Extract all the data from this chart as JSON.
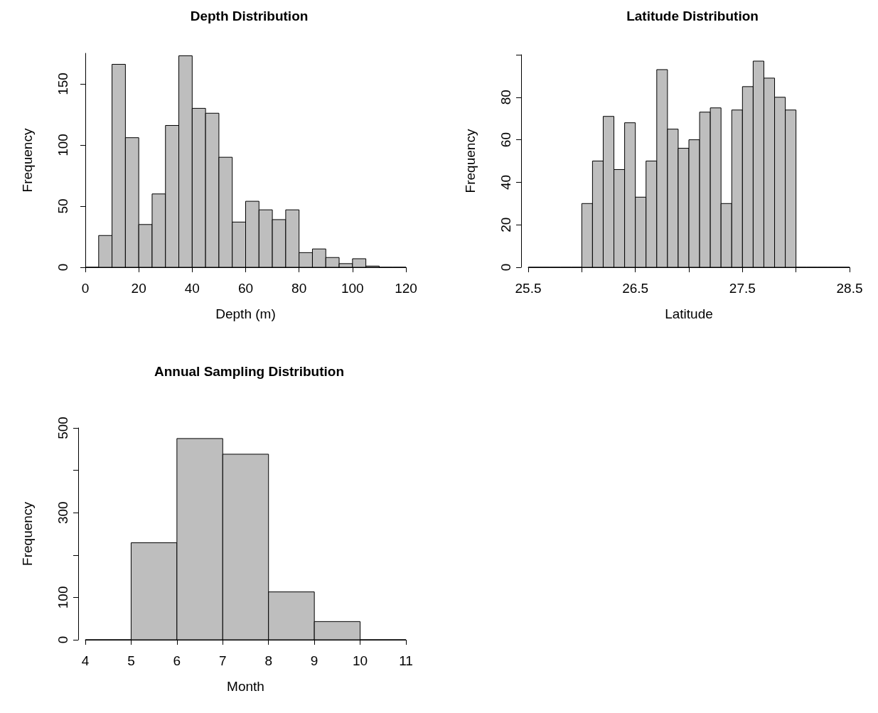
{
  "chart_data": [
    {
      "type": "histogram",
      "title": "Depth Distribution",
      "xlabel": "Depth (m)",
      "ylabel": "Frequency",
      "color": "#bebebe",
      "bins": [
        0,
        5,
        10,
        15,
        20,
        25,
        30,
        35,
        40,
        45,
        50,
        55,
        60,
        65,
        70,
        75,
        80,
        85,
        90,
        95,
        100,
        105,
        110,
        115,
        120
      ],
      "values": [
        0,
        26,
        166,
        106,
        35,
        60,
        116,
        173,
        130,
        126,
        90,
        37,
        54,
        47,
        39,
        47,
        12,
        15,
        8,
        3,
        7,
        1,
        0,
        0
      ],
      "xlim": [
        0,
        120
      ],
      "xticks": [
        0,
        20,
        40,
        60,
        80,
        100,
        120
      ],
      "ylim": [
        0,
        175
      ],
      "yticks": [
        0,
        50,
        100,
        150
      ]
    },
    {
      "type": "histogram",
      "title": "Latitude Distribution",
      "xlabel": "Latitude",
      "ylabel": "Frequency",
      "color": "#bebebe",
      "bins": [
        25.5,
        25.6,
        25.7,
        25.8,
        25.9,
        26.0,
        26.1,
        26.2,
        26.3,
        26.4,
        26.5,
        26.6,
        26.7,
        26.8,
        26.9,
        27.0,
        27.1,
        27.2,
        27.3,
        27.4,
        27.5,
        27.6,
        27.7,
        27.8,
        27.9,
        28.0,
        28.1,
        28.2,
        28.3,
        28.4,
        28.5
      ],
      "values": [
        0,
        0,
        0,
        0,
        0,
        30,
        50,
        71,
        46,
        68,
        33,
        50,
        93,
        65,
        56,
        60,
        73,
        75,
        30,
        74,
        85,
        97,
        89,
        80,
        74,
        0,
        0,
        0,
        0,
        0
      ],
      "xlim": [
        25.5,
        28.5
      ],
      "xticks": [
        25.5,
        {
          "value": 26,
          "label": null
        },
        26.5,
        {
          "value": 27,
          "label": null
        },
        27.5,
        {
          "value": 28,
          "label": null
        },
        28.5
      ],
      "ylim": [
        0,
        100
      ],
      "yticks": [
        0,
        20,
        40,
        60,
        80,
        {
          "value": 100,
          "label": null
        }
      ]
    },
    {
      "type": "histogram",
      "title": "Annual Sampling Distribution",
      "xlabel": "Month",
      "ylabel": "Frequency",
      "color": "#bebebe",
      "bins": [
        4,
        5,
        6,
        7,
        8,
        9,
        10,
        11
      ],
      "values": [
        0,
        229,
        475,
        438,
        113,
        43,
        0
      ],
      "xlim": [
        4,
        11
      ],
      "xticks": [
        4,
        5,
        6,
        7,
        8,
        9,
        10,
        11
      ],
      "ylim": [
        0,
        500
      ],
      "yticks": [
        0,
        100,
        {
          "value": 200,
          "label": null
        },
        300,
        {
          "value": 400,
          "label": null
        },
        500
      ]
    }
  ]
}
